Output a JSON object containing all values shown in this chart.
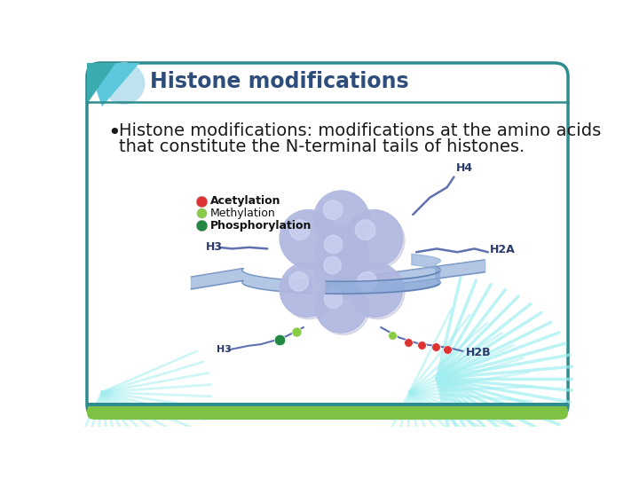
{
  "title": "Histone modifications",
  "title_color": "#2E4D7A",
  "title_fontsize": 17,
  "bullet_text_line1": "Histone modifications: modifications at the amino acids",
  "bullet_text_line2": "that constitute the N-terminal tails of histones.",
  "bullet_fontsize": 14,
  "bg_color": "#FFFFFF",
  "slide_border_color": "#2E8B8E",
  "slide_border_lw": 2.5,
  "triangle_color1": "#5BC8DC",
  "triangle_color2": "#3AACB0",
  "circle_color": "#B8DFF0",
  "bottom_bar_green": "#7DC242",
  "bottom_bar_teal": "#2E8B8E",
  "dna_color": "#A0EEF0",
  "text_color": "#1A1A1A",
  "histone_color": "#B0B8E0",
  "histone_highlight": "#D8DCF8",
  "dna_ribbon_color": "#7090C8",
  "tail_color": "#6070B0",
  "legend_acetylation": "#DD3333",
  "legend_methylation": "#88CC44",
  "legend_phosphorylation": "#228844"
}
